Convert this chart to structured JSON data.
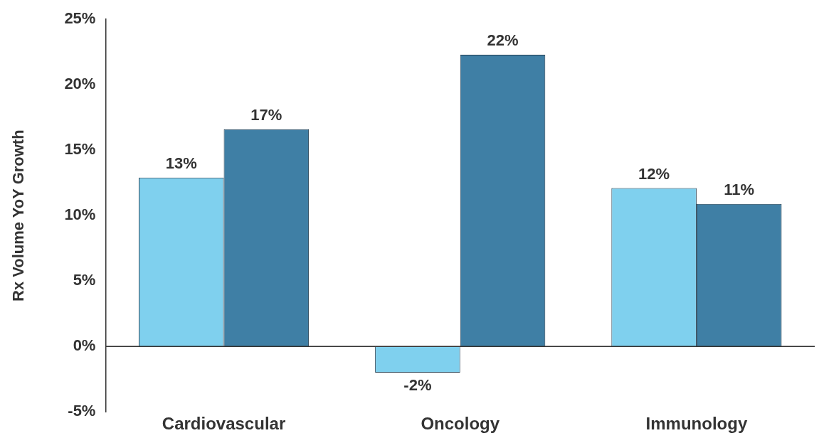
{
  "chart_data": {
    "type": "bar",
    "ylabel": "Rx Volume YoY Growth",
    "categories": [
      "Cardiovascular",
      "Oncology",
      "Immunology"
    ],
    "series": [
      {
        "color": "#7fd0ee",
        "values": [
          12.9,
          -2,
          12.1
        ],
        "value_labels": [
          "13%",
          "-2%",
          "12%"
        ]
      },
      {
        "color": "#3f7fa5",
        "values": [
          16.6,
          22.3,
          10.9
        ],
        "value_labels": [
          "17%",
          "22%",
          "11%"
        ]
      }
    ],
    "ylim": [
      -5,
      25
    ],
    "yticks": [
      {
        "value": -5,
        "label": "-5%"
      },
      {
        "value": 0,
        "label": "0%"
      },
      {
        "value": 5,
        "label": "5%"
      },
      {
        "value": 10,
        "label": "10%"
      },
      {
        "value": 15,
        "label": "15%"
      },
      {
        "value": 20,
        "label": "20%"
      },
      {
        "value": 25,
        "label": "25%"
      }
    ],
    "ref_lines": [
      {
        "axis": "y",
        "value": 0,
        "color": "#333333"
      }
    ],
    "grid": false,
    "legend": false
  }
}
